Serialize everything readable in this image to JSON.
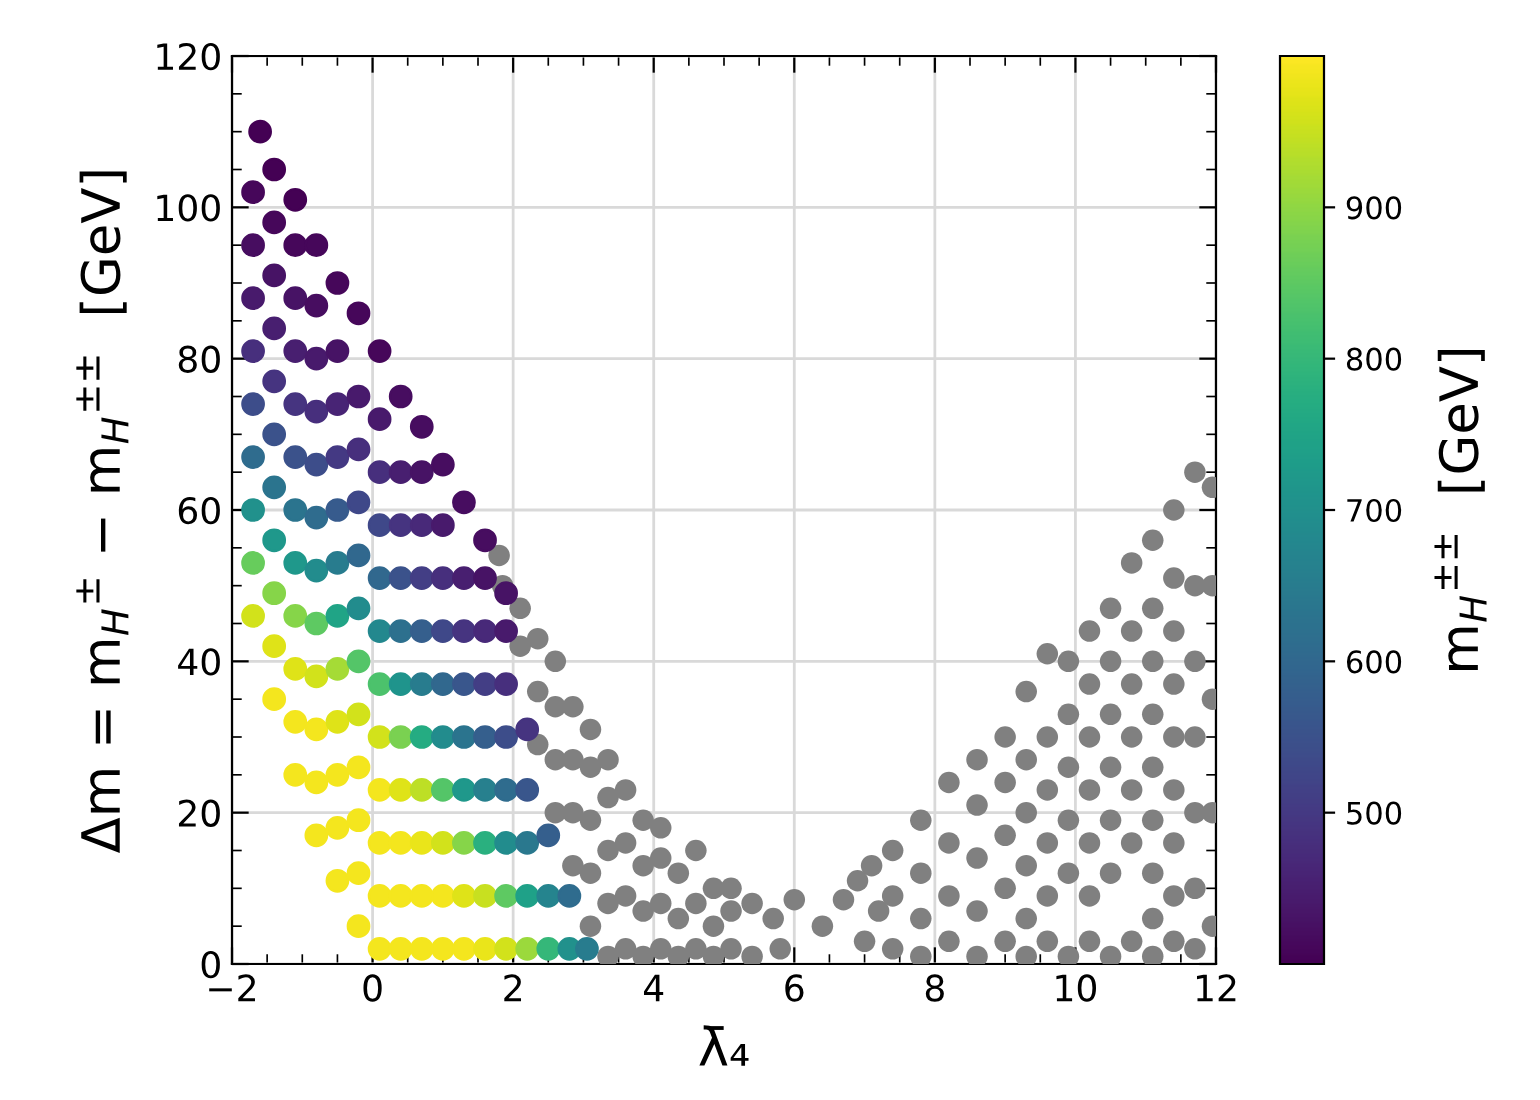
{
  "chart_data": {
    "type": "scatter",
    "xlabel": "λ̄₄",
    "ylabel": "Δm = m$_{H}$$^{±}$ − m$_{H}$$^{±±}$  [GeV]",
    "clabel": "m$_{H}$$^{±±}$  [GeV]",
    "xlim": [
      -2,
      12
    ],
    "ylim": [
      0,
      120
    ],
    "xticks": [
      -2,
      0,
      2,
      4,
      6,
      8,
      10,
      12
    ],
    "yticks": [
      0,
      20,
      40,
      60,
      80,
      100,
      120
    ],
    "clim": [
      400,
      1000
    ],
    "cticks": [
      500,
      600,
      700,
      800,
      900
    ],
    "grid": true,
    "marker": "circle",
    "series": [
      {
        "color": "#808080",
        "x": [
          1.8,
          1.85,
          2.1,
          2.1,
          2.35,
          2.35,
          2.35,
          2.6,
          2.6,
          2.6,
          2.6,
          2.85,
          2.85,
          2.85,
          2.85,
          3.1,
          3.1,
          3.1,
          3.1,
          3.1,
          3.35,
          3.35,
          3.35,
          3.35,
          3.35,
          3.6,
          3.6,
          3.6,
          3.6,
          3.85,
          3.85,
          3.85,
          3.85,
          4.1,
          4.1,
          4.1,
          4.1,
          4.35,
          4.35,
          4.35,
          4.6,
          4.6,
          4.6,
          4.85,
          4.85,
          4.85,
          5.1,
          5.1,
          5.1,
          5.4,
          5.4,
          5.7,
          5.8,
          6.0,
          6.4,
          6.7,
          6.9,
          7.0,
          7.1,
          7.2,
          7.4,
          7.4,
          7.4,
          7.8,
          7.8,
          7.8,
          7.8,
          8.2,
          8.2,
          8.2,
          8.2,
          8.6,
          8.6,
          8.6,
          8.6,
          8.6,
          9.0,
          9.0,
          9.0,
          9.0,
          9.0,
          9.3,
          9.3,
          9.3,
          9.3,
          9.3,
          9.3,
          9.6,
          9.6,
          9.6,
          9.6,
          9.6,
          9.6,
          9.9,
          9.9,
          9.9,
          9.9,
          9.9,
          9.9,
          10.2,
          10.2,
          10.2,
          10.2,
          10.2,
          10.2,
          10.2,
          10.5,
          10.5,
          10.5,
          10.5,
          10.5,
          10.5,
          10.5,
          10.8,
          10.8,
          10.8,
          10.8,
          10.8,
          10.8,
          10.8,
          11.1,
          11.1,
          11.1,
          11.1,
          11.1,
          11.1,
          11.1,
          11.1,
          11.1,
          11.4,
          11.4,
          11.4,
          11.4,
          11.4,
          11.4,
          11.4,
          11.4,
          11.4,
          11.7,
          11.7,
          11.7,
          11.7,
          11.7,
          11.7,
          11.7,
          11.95,
          11.95,
          11.95,
          11.95,
          11.95
        ],
        "values": [
          54,
          50,
          42,
          47,
          29,
          36,
          43,
          20,
          27,
          34,
          40,
          13,
          20,
          27,
          34,
          5,
          12,
          19,
          26,
          31,
          1,
          8,
          15,
          22,
          27,
          2,
          9,
          16,
          23,
          1,
          7,
          13,
          19,
          2,
          8,
          14,
          18,
          1,
          6,
          12,
          2,
          8,
          15,
          1,
          5,
          10,
          2,
          7,
          10,
          1,
          8,
          6,
          2,
          8.5,
          5,
          8.5,
          11,
          3,
          13,
          7,
          2,
          9,
          15,
          1,
          6,
          12,
          19,
          3,
          9,
          16,
          24,
          1,
          7,
          14,
          21,
          27,
          3,
          10,
          17,
          24,
          30,
          1,
          6,
          13,
          20,
          27,
          36,
          3,
          9,
          16,
          23,
          30,
          41,
          1,
          12,
          19,
          26,
          33,
          40,
          3,
          9,
          16,
          23,
          30,
          37,
          44,
          1,
          12,
          19,
          26,
          33,
          40,
          47,
          3,
          16,
          23,
          30,
          37,
          44,
          53,
          1,
          6,
          12,
          19,
          26,
          33,
          40,
          47,
          56,
          3,
          9,
          16,
          23,
          30,
          37,
          44,
          51,
          60,
          2,
          10,
          20,
          30,
          40,
          50,
          65,
          5,
          20,
          35,
          50,
          63
        ]
      },
      {
        "x": [
          -1.7,
          -1.7,
          -1.7,
          -1.7,
          -1.7,
          -1.7,
          -1.7,
          -1.7,
          -1.7,
          -1.6,
          -1.4,
          -1.4,
          -1.4,
          -1.4,
          -1.4,
          -1.4,
          -1.4,
          -1.4,
          -1.4,
          -1.4,
          -1.4,
          -1.1,
          -1.1,
          -1.1,
          -1.1,
          -1.1,
          -1.1,
          -1.1,
          -1.1,
          -1.1,
          -1.1,
          -1.1,
          -1.1,
          -0.8,
          -0.8,
          -0.8,
          -0.8,
          -0.8,
          -0.8,
          -0.8,
          -0.8,
          -0.8,
          -0.8,
          -0.8,
          -0.8,
          -0.5,
          -0.5,
          -0.5,
          -0.5,
          -0.5,
          -0.5,
          -0.5,
          -0.5,
          -0.5,
          -0.5,
          -0.5,
          -0.5,
          -0.2,
          -0.2,
          -0.2,
          -0.2,
          -0.2,
          -0.2,
          -0.2,
          -0.2,
          -0.2,
          -0.2,
          -0.2,
          -0.2,
          0.1,
          0.1,
          0.1,
          0.1,
          0.1,
          0.1,
          0.1,
          0.1,
          0.1,
          0.1,
          0.1,
          0.1,
          0.4,
          0.4,
          0.4,
          0.4,
          0.4,
          0.4,
          0.4,
          0.4,
          0.4,
          0.4,
          0.4,
          0.7,
          0.7,
          0.7,
          0.7,
          0.7,
          0.7,
          0.7,
          0.7,
          0.7,
          0.7,
          0.7,
          1.0,
          1.0,
          1.0,
          1.0,
          1.0,
          1.0,
          1.0,
          1.0,
          1.0,
          1.0,
          1.3,
          1.3,
          1.3,
          1.3,
          1.3,
          1.3,
          1.3,
          1.3,
          1.3,
          1.6,
          1.6,
          1.6,
          1.6,
          1.6,
          1.6,
          1.6,
          1.6,
          1.6,
          1.9,
          1.9,
          1.9,
          1.9,
          1.9,
          1.9,
          1.9,
          1.9,
          2.2,
          2.2,
          2.2,
          2.2,
          2.2,
          2.5,
          2.5,
          2.5,
          2.8,
          2.8,
          3.05
        ],
        "values": [
          46,
          53,
          60,
          67,
          74,
          81,
          88,
          95,
          102,
          110,
          35,
          42,
          49,
          56,
          63,
          70,
          77,
          84,
          91,
          98,
          105,
          25,
          32,
          39,
          46,
          53,
          60,
          67,
          74,
          81,
          88,
          95,
          101,
          17,
          24,
          31,
          38,
          45,
          52,
          59,
          66,
          73,
          80,
          87,
          95,
          11,
          18,
          25,
          32,
          39,
          46,
          53,
          60,
          67,
          74,
          81,
          90,
          5,
          12,
          19,
          26,
          33,
          40,
          47,
          54,
          61,
          68,
          75,
          86,
          2,
          9,
          16,
          23,
          30,
          37,
          44,
          51,
          58,
          65,
          72,
          81,
          2,
          9,
          16,
          23,
          30,
          37,
          44,
          51,
          58,
          65,
          75,
          2,
          9,
          16,
          23,
          30,
          37,
          44,
          51,
          58,
          65,
          71,
          2,
          9,
          16,
          23,
          30,
          37,
          44,
          51,
          58,
          66,
          2,
          9,
          16,
          23,
          30,
          37,
          44,
          51,
          61,
          2,
          9,
          16,
          23,
          30,
          37,
          44,
          51,
          56,
          2,
          9,
          16,
          23,
          30,
          37,
          44,
          49,
          2,
          9,
          16,
          23,
          31,
          2,
          9,
          17,
          2,
          9,
          2
        ],
        "cvalues": [
          960,
          860,
          700,
          610,
          540,
          480,
          440,
          420,
          410,
          400,
          990,
          970,
          890,
          720,
          630,
          550,
          490,
          450,
          430,
          410,
          400,
          990,
          990,
          970,
          890,
          720,
          630,
          550,
          490,
          450,
          430,
          410,
          400,
          990,
          990,
          990,
          960,
          850,
          690,
          610,
          540,
          480,
          440,
          420,
          410,
          990,
          990,
          990,
          970,
          920,
          750,
          650,
          570,
          500,
          460,
          430,
          410,
          990,
          990,
          990,
          990,
          960,
          840,
          690,
          600,
          530,
          480,
          440,
          410,
          990,
          990,
          990,
          990,
          960,
          830,
          680,
          600,
          530,
          480,
          440,
          410,
          990,
          990,
          990,
          970,
          880,
          710,
          620,
          550,
          490,
          450,
          420,
          990,
          990,
          980,
          940,
          770,
          650,
          580,
          510,
          470,
          430,
          420,
          990,
          990,
          960,
          840,
          690,
          600,
          530,
          480,
          440,
          420,
          990,
          970,
          890,
          720,
          630,
          560,
          490,
          450,
          420,
          980,
          950,
          780,
          660,
          580,
          510,
          470,
          430,
          420,
          960,
          850,
          690,
          610,
          540,
          480,
          440,
          430,
          910,
          740,
          640,
          560,
          490,
          800,
          670,
          580,
          700,
          610,
          650
        ],
        "colors": [
          "#d2e21b",
          "#67cc5c",
          "#21918c",
          "#2f6c8e",
          "#3d4d8a",
          "#472f7d",
          "#481a6c",
          "#470d60",
          "#46075a",
          "#440154",
          "#f4e61e",
          "#dfe318",
          "#86d549",
          "#1f988b",
          "#2b748e",
          "#3b528b",
          "#463480",
          "#481f70",
          "#471365",
          "#46075a",
          "#440154",
          "#f4e61e",
          "#f4e61e",
          "#dfe318",
          "#86d549",
          "#1f988b",
          "#2b748e",
          "#3b528b",
          "#463480",
          "#481f70",
          "#471365",
          "#46075a",
          "#440154",
          "#f4e61e",
          "#f4e61e",
          "#f4e61e",
          "#d2e21b",
          "#5ec962",
          "#228c8d",
          "#2f6c8e",
          "#3d4d8a",
          "#472f7d",
          "#481a6c",
          "#470d60",
          "#46075a",
          "#f4e61e",
          "#f4e61e",
          "#f4e61e",
          "#dfe318",
          "#a5db36",
          "#20a486",
          "#287c8e",
          "#375b8d",
          "#443983",
          "#482475",
          "#471365",
          "#46075a",
          "#f4e61e",
          "#f4e61e",
          "#f4e61e",
          "#f4e61e",
          "#d2e21b",
          "#54c568",
          "#228c8d",
          "#31688e",
          "#3f4889",
          "#472f7d",
          "#481a6c",
          "#46075a",
          "#f4e61e",
          "#f4e61e",
          "#f4e61e",
          "#f4e61e",
          "#d2e21b",
          "#4cc26c",
          "#23888e",
          "#31688e",
          "#3f4889",
          "#472f7d",
          "#481a6c",
          "#46075a",
          "#f4e61e",
          "#f4e61e",
          "#f4e61e",
          "#dfe318",
          "#7ad151",
          "#1f948c",
          "#2d708e",
          "#3b528b",
          "#463480",
          "#481f70",
          "#470d60",
          "#f4e61e",
          "#f4e61e",
          "#eae51a",
          "#bddf26",
          "#25ac82",
          "#287c8e",
          "#355f8d",
          "#433e85",
          "#482979",
          "#471365",
          "#470d60",
          "#f4e61e",
          "#f4e61e",
          "#d2e21b",
          "#54c568",
          "#228c8d",
          "#31688e",
          "#3f4889",
          "#472f7d",
          "#481a6c",
          "#470d60",
          "#f4e61e",
          "#dfe318",
          "#86d549",
          "#1f988b",
          "#2b748e",
          "#39568c",
          "#463480",
          "#481f70",
          "#470d60",
          "#eae51a",
          "#c8e020",
          "#2ab07f",
          "#27808e",
          "#355f8d",
          "#433e85",
          "#482979",
          "#471365",
          "#470d60",
          "#d2e21b",
          "#5ec962",
          "#228c8d",
          "#2f6c8e",
          "#3d4d8a",
          "#472f7d",
          "#481a6c",
          "#471365",
          "#9bd93c",
          "#1fa188",
          "#2a788e",
          "#39568c",
          "#463480",
          "#35b779",
          "#25848e",
          "#355f8d",
          "#21918c",
          "#2f6c8e",
          "#287c8e"
        ]
      }
    ]
  }
}
